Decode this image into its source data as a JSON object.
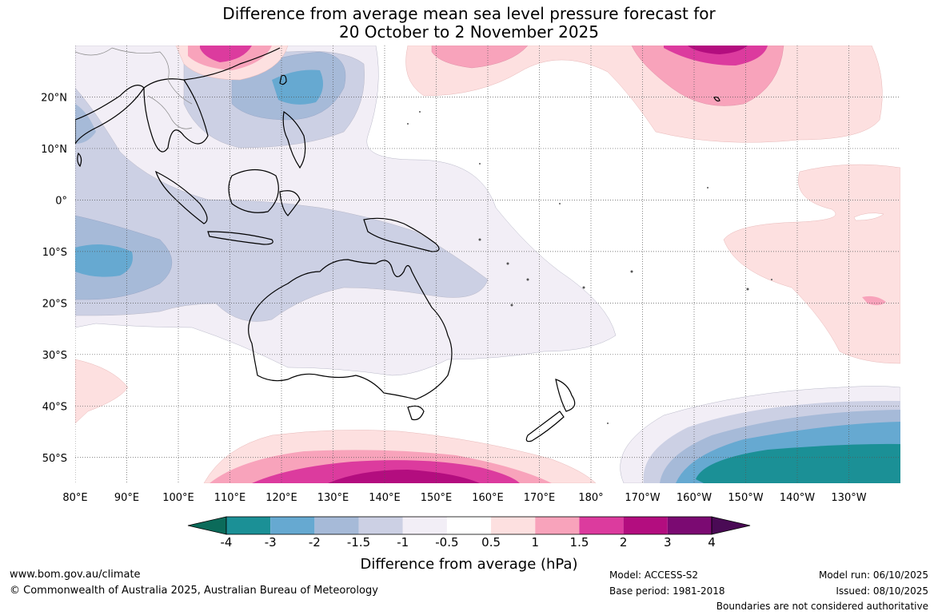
{
  "title": {
    "line1": "Difference from average mean sea level pressure forecast for",
    "line2": "20 October to 2 November 2025"
  },
  "axes": {
    "lon_ticks": [
      {
        "lon": 80,
        "label": "80°E"
      },
      {
        "lon": 90,
        "label": "90°E"
      },
      {
        "lon": 100,
        "label": "100°E"
      },
      {
        "lon": 110,
        "label": "110°E"
      },
      {
        "lon": 120,
        "label": "120°E"
      },
      {
        "lon": 130,
        "label": "130°E"
      },
      {
        "lon": 140,
        "label": "140°E"
      },
      {
        "lon": 150,
        "label": "150°E"
      },
      {
        "lon": 160,
        "label": "160°E"
      },
      {
        "lon": 170,
        "label": "170°E"
      },
      {
        "lon": 180,
        "label": "180°"
      },
      {
        "lon": 190,
        "label": "170°W"
      },
      {
        "lon": 200,
        "label": "160°W"
      },
      {
        "lon": 210,
        "label": "150°W"
      },
      {
        "lon": 220,
        "label": "140°W"
      },
      {
        "lon": 230,
        "label": "130°W"
      }
    ],
    "lat_ticks": [
      {
        "lat": 20,
        "label": "20°N"
      },
      {
        "lat": 10,
        "label": "10°N"
      },
      {
        "lat": 0,
        "label": "0°"
      },
      {
        "lat": -10,
        "label": "10°S"
      },
      {
        "lat": -20,
        "label": "20°S"
      },
      {
        "lat": -30,
        "label": "30°S"
      },
      {
        "lat": -40,
        "label": "40°S"
      },
      {
        "lat": -50,
        "label": "50°S"
      }
    ],
    "lon_range": [
      80,
      240
    ],
    "lat_range": [
      -55,
      30
    ]
  },
  "colorbar": {
    "ticks": [
      "-4",
      "-3",
      "-2",
      "-1.5",
      "-1",
      "-0.5",
      "0.5",
      "1",
      "1.5",
      "2",
      "3",
      "4"
    ],
    "colors": [
      "#0b6b5a",
      "#1b9096",
      "#66a9d1",
      "#a6bad8",
      "#ccd0e4",
      "#f2eef6",
      "#ffffff",
      "#fde0e0",
      "#f8a3bb",
      "#dc3b9e",
      "#b30d7f",
      "#7b0a72",
      "#4a0a55"
    ],
    "label": "Difference from average (hPa)"
  },
  "footer": {
    "website": "www.bom.gov.au/climate",
    "copyright": "© Commonwealth of Australia 2025, Australian Bureau of Meteorology",
    "model": "Model: ACCESS-S2",
    "base_period": "Base period: 1981-2018",
    "model_run": "Model run: 06/10/2025",
    "issued": "Issued: 08/10/2025",
    "disclaimer": "Boundaries are not considered authoritative"
  }
}
